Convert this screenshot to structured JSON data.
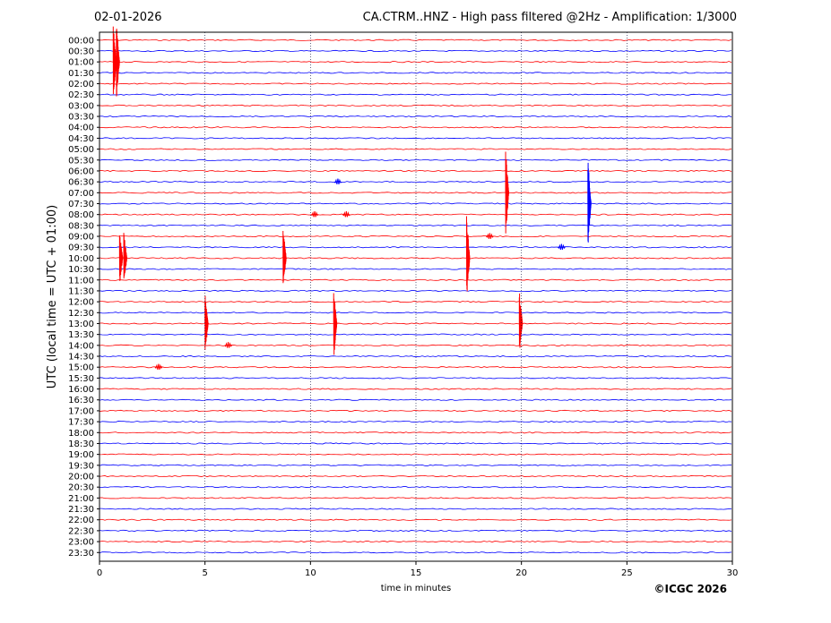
{
  "header": {
    "date": "02-01-2026",
    "title": "CA.CTRM..HNZ - High pass filtered @2Hz - Amplification: 1/3000"
  },
  "copyright": "©ICGC 2026",
  "chart_data": {
    "type": "line",
    "title": "CA.CTRM..HNZ - High pass filtered @2Hz - Amplification: 1/3000",
    "xlabel": "time in minutes",
    "ylabel": "UTC (local time = UTC + 01:00)",
    "xlim": [
      0,
      30
    ],
    "xticks": [
      0,
      5,
      10,
      15,
      20,
      25,
      30
    ],
    "grid": "vertical dotted at 5 min",
    "trace_colors": [
      "#ff0000",
      "#0000ff"
    ],
    "rows": [
      "00:00",
      "00:30",
      "01:00",
      "01:30",
      "02:00",
      "02:30",
      "03:00",
      "03:30",
      "04:00",
      "04:30",
      "05:00",
      "05:30",
      "06:00",
      "06:30",
      "07:00",
      "07:30",
      "08:00",
      "08:30",
      "09:00",
      "09:30",
      "10:00",
      "10:30",
      "11:00",
      "11:30",
      "12:00",
      "12:30",
      "13:00",
      "13:30",
      "14:00",
      "14:30",
      "15:00",
      "15:30",
      "16:00",
      "16:30",
      "17:00",
      "17:30",
      "18:00",
      "18:30",
      "19:00",
      "19:30",
      "20:00",
      "20:30",
      "21:00",
      "21:30",
      "22:00",
      "22:30",
      "23:00",
      "23:30"
    ],
    "events": [
      {
        "row": "01:00",
        "minute": 0.65,
        "amplitude": 3.5
      },
      {
        "row": "01:00",
        "minute": 0.8,
        "amplitude": 3.5
      },
      {
        "row": "10:00",
        "minute": 0.95,
        "amplitude": 2.5
      },
      {
        "row": "10:00",
        "minute": 1.15,
        "amplitude": 2.5
      },
      {
        "row": "13:00",
        "minute": 5.0,
        "amplitude": 3.0
      },
      {
        "row": "10:00",
        "minute": 8.7,
        "amplitude": 3.0
      },
      {
        "row": "13:00",
        "minute": 11.1,
        "amplitude": 3.3
      },
      {
        "row": "10:00",
        "minute": 17.4,
        "amplitude": 4.0
      },
      {
        "row": "07:00",
        "minute": 19.25,
        "amplitude": 4.0
      },
      {
        "row": "13:00",
        "minute": 19.9,
        "amplitude": 3.0
      },
      {
        "row": "07:30",
        "minute": 23.15,
        "amplitude": 4.2
      }
    ],
    "noise_bursts": [
      {
        "row": "06:30",
        "minute": 11.3
      },
      {
        "row": "08:00",
        "minute": 10.2
      },
      {
        "row": "08:00",
        "minute": 11.7
      },
      {
        "row": "09:30",
        "minute": 21.9
      },
      {
        "row": "14:00",
        "minute": 6.1
      },
      {
        "row": "15:00",
        "minute": 2.8
      },
      {
        "row": "09:00",
        "minute": 18.5
      }
    ]
  }
}
